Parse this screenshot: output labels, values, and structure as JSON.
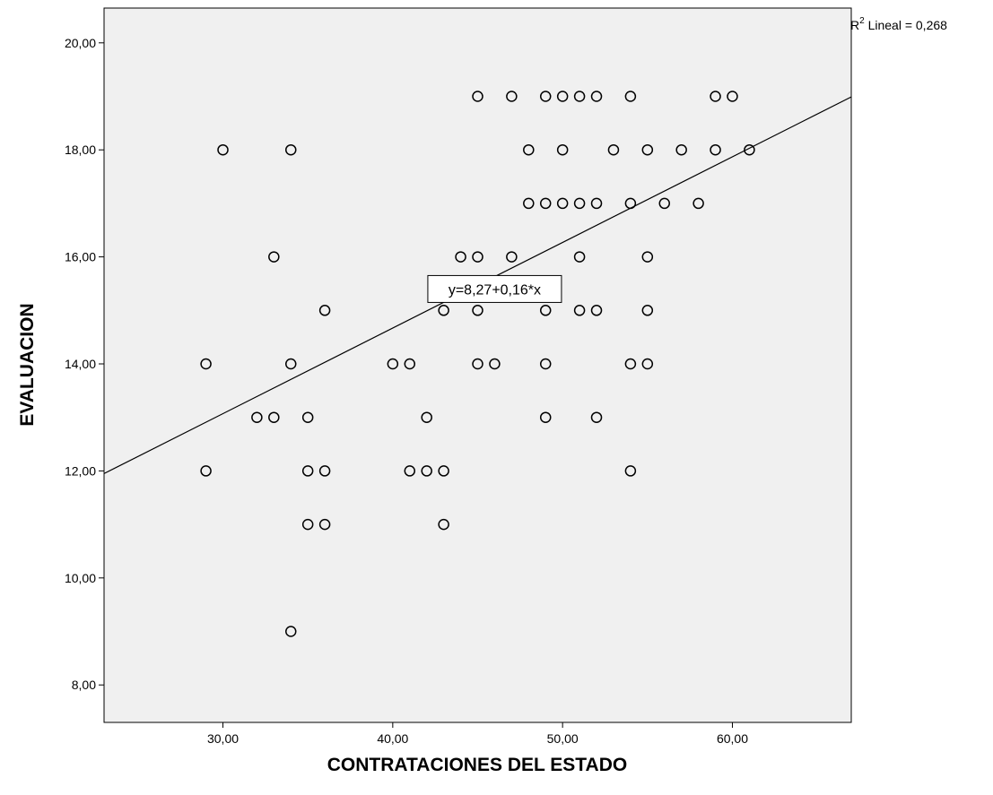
{
  "chart_data": {
    "type": "scatter",
    "xlabel": "CONTRATACIONES DEL ESTADO",
    "ylabel": "EVALUACION",
    "xlim": [
      23,
      67
    ],
    "ylim": [
      7.3,
      20.65
    ],
    "xticks": [
      30,
      40,
      50,
      60
    ],
    "xtick_labels": [
      "30,00",
      "40,00",
      "50,00",
      "60,00"
    ],
    "yticks": [
      8,
      10,
      12,
      14,
      16,
      18,
      20
    ],
    "ytick_labels": [
      "8,00",
      "10,00",
      "12,00",
      "14,00",
      "16,00",
      "18,00",
      "20,00"
    ],
    "grid": false,
    "plot_background": "#f0f0f0",
    "marker_color": "#000000",
    "fit_line": {
      "intercept": 8.27,
      "slope": 0.16,
      "label": "y=8,27+0,16*x",
      "label_anchor": [
        46,
        15.4
      ]
    },
    "r2": {
      "prefix": "R",
      "superscript": "2",
      "text": " Lineal = 0,268"
    },
    "points": [
      [
        29,
        14
      ],
      [
        29,
        12
      ],
      [
        30,
        18
      ],
      [
        32,
        13
      ],
      [
        33,
        16
      ],
      [
        33,
        13
      ],
      [
        34,
        18
      ],
      [
        34,
        14
      ],
      [
        34,
        9
      ],
      [
        35,
        13
      ],
      [
        35,
        12
      ],
      [
        35,
        11
      ],
      [
        36,
        15
      ],
      [
        36,
        12
      ],
      [
        36,
        11
      ],
      [
        40,
        14
      ],
      [
        41,
        14
      ],
      [
        41,
        12
      ],
      [
        42,
        13
      ],
      [
        42,
        12
      ],
      [
        43,
        15
      ],
      [
        43,
        12
      ],
      [
        43,
        11
      ],
      [
        44,
        16
      ],
      [
        45,
        19
      ],
      [
        45,
        16
      ],
      [
        45,
        15
      ],
      [
        45,
        14
      ],
      [
        46,
        14
      ],
      [
        47,
        19
      ],
      [
        47,
        16
      ],
      [
        48,
        18
      ],
      [
        48,
        17
      ],
      [
        49,
        19
      ],
      [
        49,
        17
      ],
      [
        49,
        15
      ],
      [
        49,
        14
      ],
      [
        49,
        13
      ],
      [
        50,
        19
      ],
      [
        50,
        18
      ],
      [
        50,
        17
      ],
      [
        51,
        19
      ],
      [
        51,
        17
      ],
      [
        51,
        16
      ],
      [
        51,
        15
      ],
      [
        52,
        19
      ],
      [
        52,
        17
      ],
      [
        52,
        15
      ],
      [
        52,
        13
      ],
      [
        53,
        18
      ],
      [
        54,
        19
      ],
      [
        54,
        17
      ],
      [
        54,
        14
      ],
      [
        54,
        12
      ],
      [
        55,
        18
      ],
      [
        55,
        16
      ],
      [
        55,
        15
      ],
      [
        55,
        14
      ],
      [
        56,
        17
      ],
      [
        57,
        18
      ],
      [
        58,
        17
      ],
      [
        59,
        19
      ],
      [
        59,
        18
      ],
      [
        60,
        19
      ],
      [
        61,
        18
      ]
    ]
  }
}
